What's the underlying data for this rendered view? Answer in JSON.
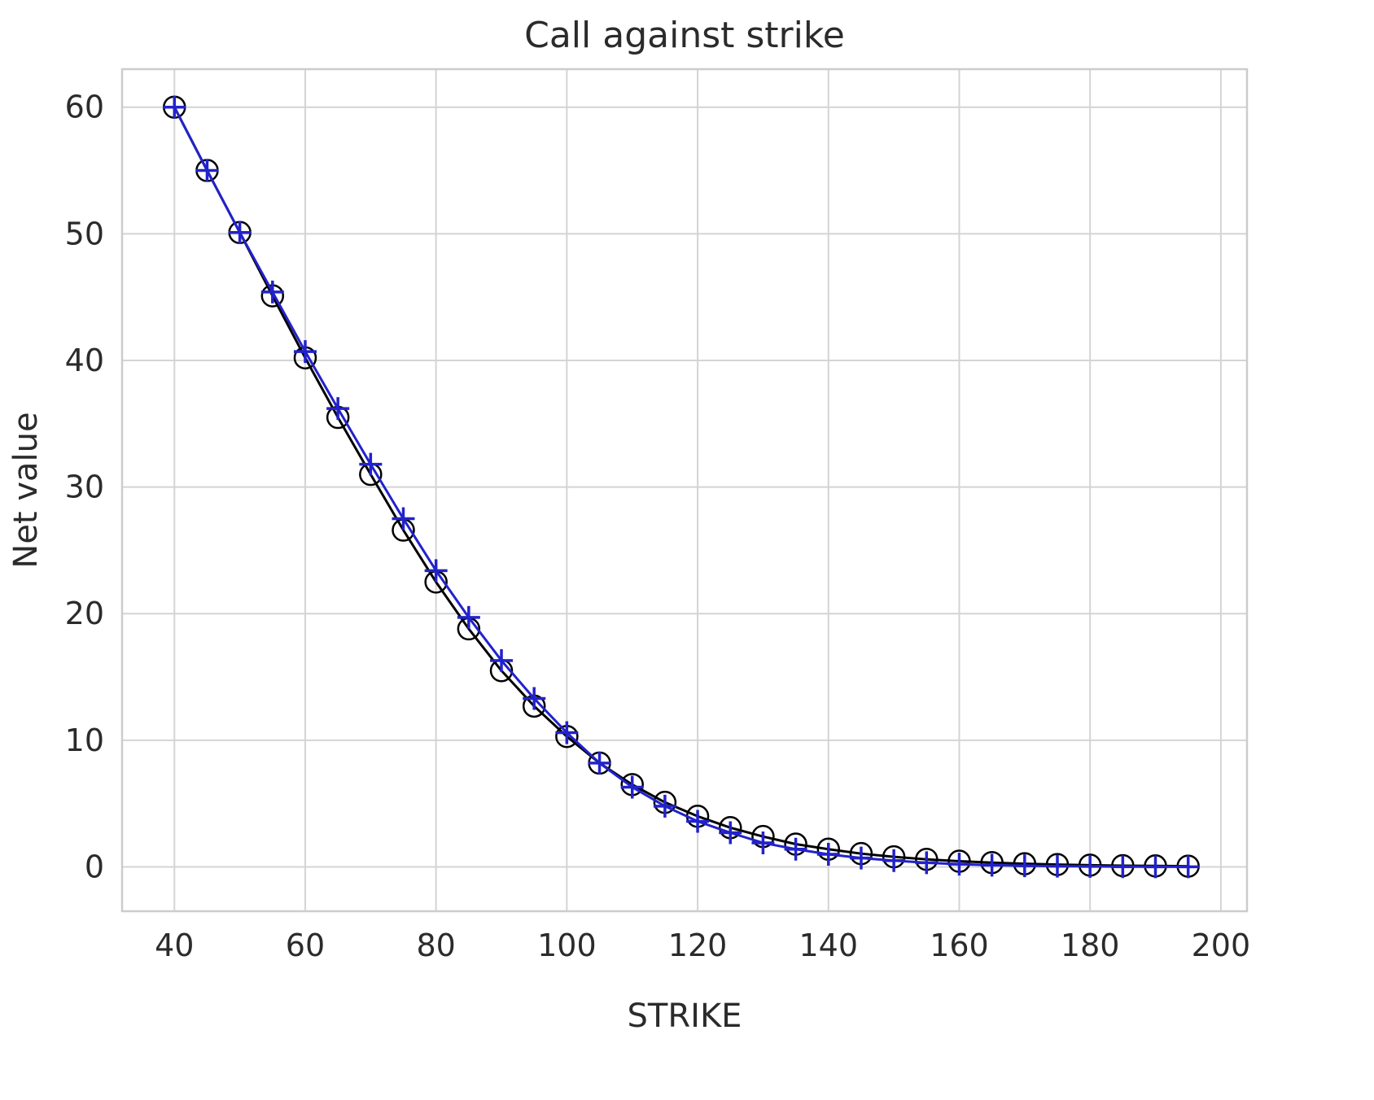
{
  "chart_data": {
    "type": "line",
    "title": "Call against strike",
    "xlabel": "STRIKE",
    "ylabel": "Net value",
    "xlim": [
      32,
      204
    ],
    "ylim": [
      -3.5,
      63
    ],
    "xticks": [
      40,
      60,
      80,
      100,
      120,
      140,
      160,
      180,
      200
    ],
    "yticks": [
      0,
      10,
      20,
      30,
      40,
      50,
      60
    ],
    "grid": true,
    "legend": "none",
    "x": [
      40,
      45,
      50,
      55,
      60,
      65,
      70,
      75,
      80,
      85,
      90,
      95,
      100,
      105,
      110,
      115,
      120,
      125,
      130,
      135,
      140,
      145,
      150,
      155,
      160,
      165,
      170,
      175,
      180,
      185,
      190,
      195
    ],
    "series": [
      {
        "marker": "circle",
        "color": "#000000",
        "values": [
          60.0,
          55.0,
          50.1,
          45.1,
          40.2,
          35.5,
          31.0,
          26.6,
          22.5,
          18.8,
          15.5,
          12.7,
          10.3,
          8.2,
          6.5,
          5.1,
          4.0,
          3.1,
          2.4,
          1.8,
          1.4,
          1.05,
          0.8,
          0.6,
          0.45,
          0.34,
          0.25,
          0.19,
          0.14,
          0.1,
          0.08,
          0.06
        ]
      },
      {
        "marker": "plus",
        "color": "#2222cc",
        "values": [
          60.0,
          55.0,
          50.1,
          45.4,
          40.7,
          36.2,
          31.8,
          27.5,
          23.4,
          19.7,
          16.3,
          13.3,
          10.6,
          8.2,
          6.3,
          4.8,
          3.6,
          2.7,
          1.9,
          1.4,
          1.0,
          0.7,
          0.5,
          0.33,
          0.22,
          0.14,
          0.09,
          0.06,
          0.04,
          0.02,
          0.01,
          0.01
        ]
      }
    ],
    "colors": {
      "grid": "#d4d4d4",
      "spine": "#cccccc",
      "text": "#2b2b2b"
    }
  }
}
